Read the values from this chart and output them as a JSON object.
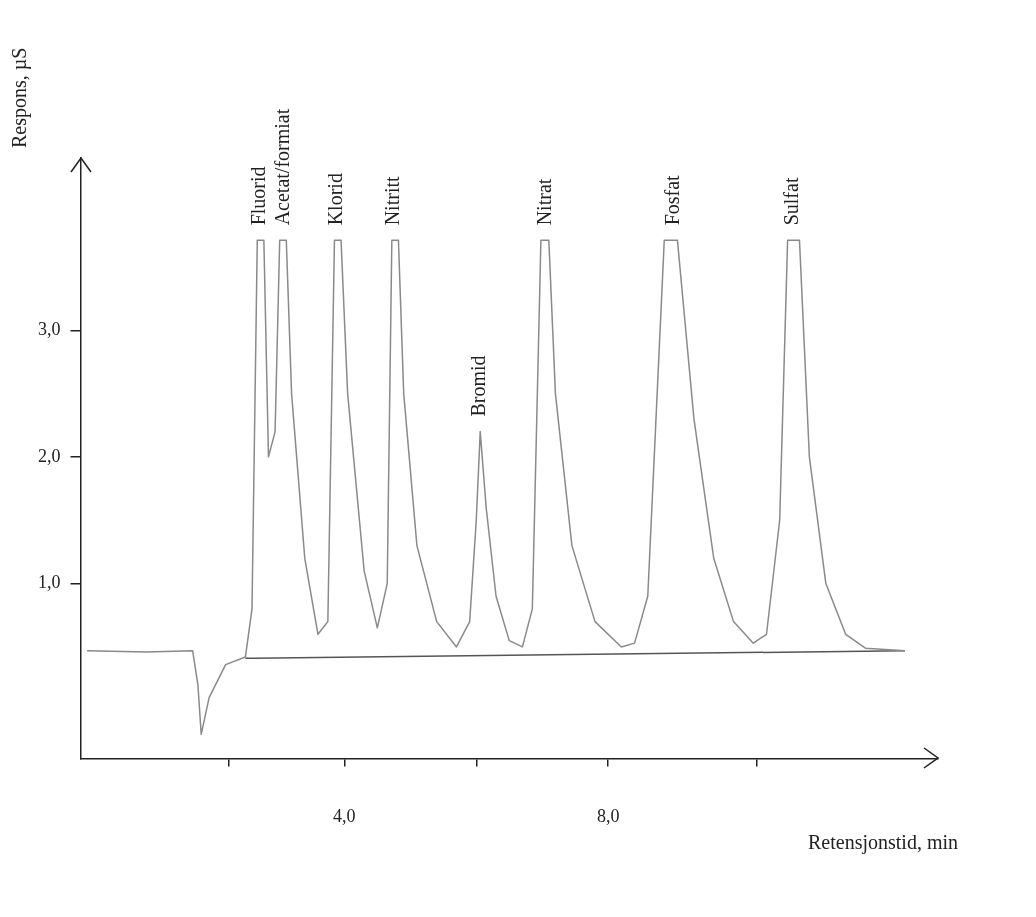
{
  "chart_data": {
    "type": "line",
    "xlabel": "Retensjonstid, min",
    "ylabel": "Respons, µS",
    "xlim": [
      0,
      13
    ],
    "ylim": [
      -0.38,
      4.36
    ],
    "xticks": [
      {
        "value": 2.25,
        "label": null
      },
      {
        "value": 4,
        "label": "4,0"
      },
      {
        "value": 6,
        "label": null
      },
      {
        "value": 8,
        "label": "8,0"
      },
      {
        "value": 10.25,
        "label": null
      }
    ],
    "yticks": [
      {
        "value": 1,
        "label": "1,0"
      },
      {
        "value": 2,
        "label": "2,0"
      },
      {
        "value": 3,
        "label": "3,0"
      }
    ],
    "grid": false,
    "legend": false,
    "marker": "none",
    "line_style": "solid",
    "series": [
      {
        "color": "#8a8a8a",
        "x": [
          0.1,
          1.0,
          1.7,
          1.78,
          1.83,
          1.95,
          2.2,
          2.5,
          2.6,
          2.68,
          2.78,
          2.85,
          2.95,
          3.02,
          3.12,
          3.2,
          3.4,
          3.6,
          3.75,
          3.85,
          3.95,
          4.05,
          4.3,
          4.5,
          4.65,
          4.72,
          4.82,
          4.9,
          5.1,
          5.4,
          5.7,
          5.9,
          6.0,
          6.06,
          6.15,
          6.3,
          6.5,
          6.7,
          6.85,
          6.98,
          7.1,
          7.2,
          7.45,
          7.8,
          8.2,
          8.4,
          8.6,
          8.85,
          9.05,
          9.3,
          9.6,
          9.9,
          10.2,
          10.4,
          10.6,
          10.72,
          10.9,
          11.05,
          11.3,
          11.6,
          11.9,
          12.5
        ],
        "values": [
          0.47,
          0.46,
          0.47,
          0.2,
          -0.19,
          0.1,
          0.36,
          0.42,
          0.8,
          3.71,
          3.71,
          2.0,
          2.2,
          3.71,
          3.71,
          2.5,
          1.2,
          0.6,
          0.7,
          3.71,
          3.71,
          2.5,
          1.1,
          0.65,
          1.0,
          3.71,
          3.71,
          2.5,
          1.3,
          0.7,
          0.5,
          0.7,
          1.5,
          2.2,
          1.6,
          0.9,
          0.55,
          0.5,
          0.8,
          3.71,
          3.71,
          2.5,
          1.3,
          0.7,
          0.5,
          0.53,
          0.9,
          3.71,
          3.71,
          2.3,
          1.2,
          0.7,
          0.53,
          0.6,
          1.5,
          3.71,
          3.71,
          2.0,
          1.0,
          0.6,
          0.49,
          0.47
        ]
      },
      {
        "color": "#555555",
        "x": [
          2.5,
          12.5
        ],
        "values": [
          0.41,
          0.47
        ]
      }
    ],
    "annotations": [
      {
        "text": "Fluorid",
        "x": 2.72,
        "y": 3.71
      },
      {
        "text": "Acetat/formiat",
        "x": 3.08,
        "y": 3.71
      },
      {
        "text": "Klorid",
        "x": 3.89,
        "y": 3.71
      },
      {
        "text": "Nitritt",
        "x": 4.75,
        "y": 3.71
      },
      {
        "text": "Bromid",
        "x": 6.06,
        "y": 2.2
      },
      {
        "text": "Nitrat",
        "x": 7.05,
        "y": 3.71
      },
      {
        "text": "Fosfat",
        "x": 9.0,
        "y": 3.71
      },
      {
        "text": "Sulfat",
        "x": 10.8,
        "y": 3.71
      }
    ]
  }
}
